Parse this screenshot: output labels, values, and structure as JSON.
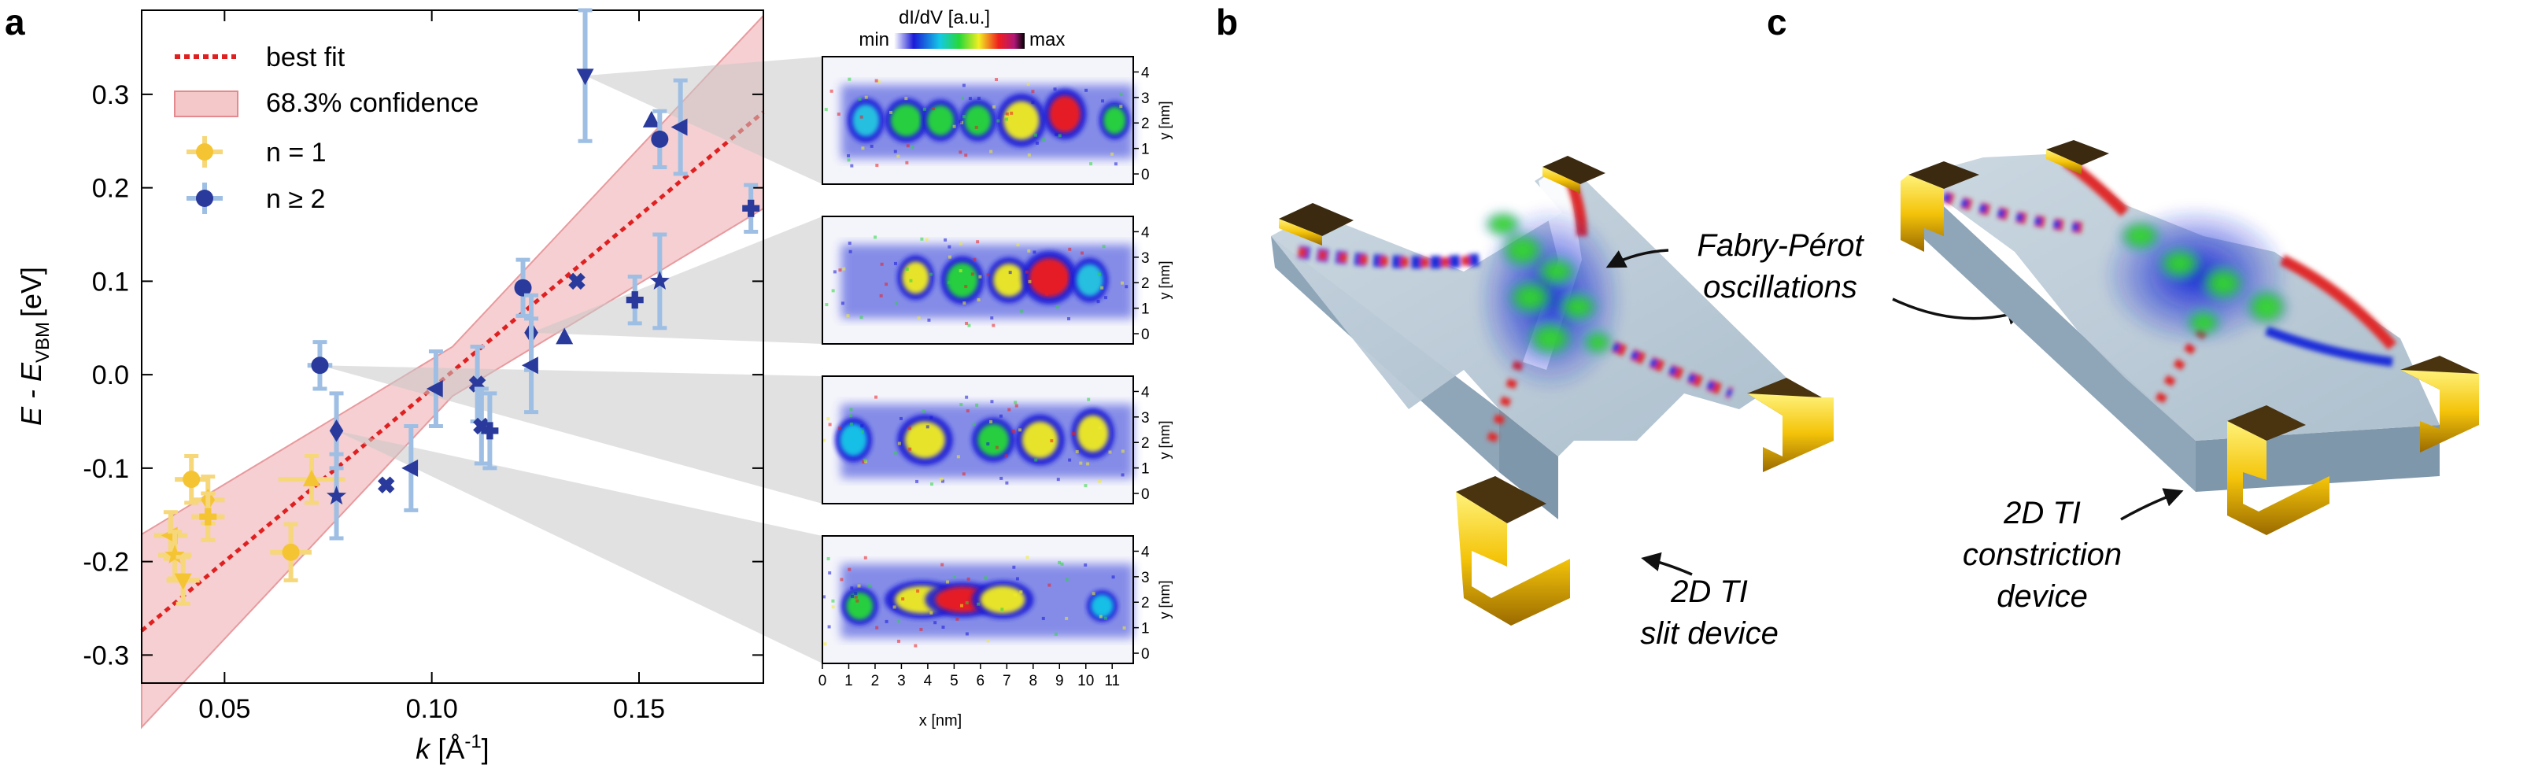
{
  "panels": {
    "a": "a",
    "b": "b",
    "c": "c"
  },
  "chart_data": {
    "type": "scatter",
    "xlabel_symbol": "k",
    "xlabel_unit": "[Å",
    "xlabel_unit_sup": "-1",
    "xlabel_unit_close": "]",
    "ylabel_prefix": "E - E",
    "ylabel_sub": "VBM",
    "ylabel_unit": "[eV]",
    "xlim": [
      0.03,
      0.18
    ],
    "ylim": [
      -0.33,
      0.39
    ],
    "xticks": [
      0.05,
      0.1,
      0.15
    ],
    "xtick_labels": [
      "0.05",
      "0.10",
      "0.15"
    ],
    "yticks": [
      -0.3,
      -0.2,
      -0.1,
      0.0,
      0.1,
      0.2,
      0.3
    ],
    "ytick_labels": [
      "-0.3",
      "-0.2",
      "-0.1",
      "0.0",
      "0.1",
      "0.2",
      "0.3"
    ],
    "fit": {
      "slope": 3.7,
      "intercept": -0.385,
      "band_width": 0.048
    },
    "legend": {
      "fit": "best fit",
      "confidence": "68.3% confidence",
      "n1": "n = 1",
      "n2": "n  ≥  2"
    },
    "colors": {
      "n1": "#F5C433",
      "n2": "#2A3A9C",
      "errbar_n2": "#9EBFE3",
      "fit": "#E02020",
      "band": "#F4C7C9"
    },
    "series": [
      {
        "name": "n = 1",
        "points": [
          {
            "x": 0.042,
            "y": -0.112,
            "xerr": 0.004,
            "yerr": 0.025,
            "marker": "circle"
          },
          {
            "x": 0.046,
            "y": -0.134,
            "xerr": 0.004,
            "yerr": 0.025,
            "marker": "diamond"
          },
          {
            "x": 0.046,
            "y": -0.152,
            "xerr": 0.004,
            "yerr": 0.025,
            "marker": "plus"
          },
          {
            "x": 0.037,
            "y": -0.172,
            "xerr": 0.004,
            "yerr": 0.025,
            "marker": "triangle-left"
          },
          {
            "x": 0.038,
            "y": -0.193,
            "xerr": 0.004,
            "yerr": 0.025,
            "marker": "star"
          },
          {
            "x": 0.04,
            "y": -0.22,
            "xerr": 0.004,
            "yerr": 0.025,
            "marker": "triangle-down"
          },
          {
            "x": 0.066,
            "y": -0.19,
            "xerr": 0.005,
            "yerr": 0.03,
            "marker": "circle"
          },
          {
            "x": 0.071,
            "y": -0.112,
            "xerr": 0.008,
            "yerr": 0.025,
            "marker": "triangle-up"
          }
        ]
      },
      {
        "name": "n  ≥  2",
        "points": [
          {
            "x": 0.073,
            "y": 0.01,
            "xerr": 0.003,
            "yerr": 0.025,
            "marker": "circle"
          },
          {
            "x": 0.077,
            "y": -0.06,
            "xerr": 0.0,
            "yerr": 0.04,
            "marker": "diamond"
          },
          {
            "x": 0.077,
            "y": -0.13,
            "xerr": 0.0,
            "yerr": 0.045,
            "marker": "star"
          },
          {
            "x": 0.089,
            "y": -0.118,
            "xerr": 0.0,
            "yerr": 0.0,
            "marker": "cross"
          },
          {
            "x": 0.095,
            "y": -0.1,
            "xerr": 0.0,
            "yerr": 0.045,
            "marker": "triangle-left"
          },
          {
            "x": 0.101,
            "y": -0.015,
            "xerr": 0.0,
            "yerr": 0.04,
            "marker": "triangle-left"
          },
          {
            "x": 0.111,
            "y": -0.01,
            "xerr": 0.0,
            "yerr": 0.04,
            "marker": "cross"
          },
          {
            "x": 0.112,
            "y": -0.055,
            "xerr": 0.0,
            "yerr": 0.04,
            "marker": "cross"
          },
          {
            "x": 0.114,
            "y": -0.06,
            "xerr": 0.0,
            "yerr": 0.04,
            "marker": "plus"
          },
          {
            "x": 0.122,
            "y": 0.093,
            "xerr": 0.0,
            "yerr": 0.03,
            "marker": "circle"
          },
          {
            "x": 0.124,
            "y": 0.045,
            "xerr": 0.0,
            "yerr": 0.04,
            "marker": "diamond"
          },
          {
            "x": 0.124,
            "y": 0.01,
            "xerr": 0.0,
            "yerr": 0.05,
            "marker": "triangle-left"
          },
          {
            "x": 0.132,
            "y": 0.04,
            "xerr": 0.0,
            "yerr": 0.0,
            "marker": "triangle-up"
          },
          {
            "x": 0.135,
            "y": 0.1,
            "xerr": 0.0,
            "yerr": 0.0,
            "marker": "cross"
          },
          {
            "x": 0.137,
            "y": 0.32,
            "xerr": 0.0,
            "yerr": 0.07,
            "marker": "triangle-down"
          },
          {
            "x": 0.149,
            "y": 0.08,
            "xerr": 0.0,
            "yerr": 0.025,
            "marker": "plus"
          },
          {
            "x": 0.153,
            "y": 0.272,
            "xerr": 0.0,
            "yerr": 0.0,
            "marker": "triangle-up"
          },
          {
            "x": 0.155,
            "y": 0.1,
            "xerr": 0.0,
            "yerr": 0.05,
            "marker": "star"
          },
          {
            "x": 0.155,
            "y": 0.252,
            "xerr": 0.0,
            "yerr": 0.03,
            "marker": "circle"
          },
          {
            "x": 0.16,
            "y": 0.265,
            "xerr": 0.0,
            "yerr": 0.05,
            "marker": "triangle-left"
          },
          {
            "x": 0.177,
            "y": 0.178,
            "xerr": 0.0,
            "yerr": 0.025,
            "marker": "plus"
          }
        ]
      }
    ]
  },
  "maps": {
    "colorbar_title": "dI/dV [a.u.]",
    "colorbar_min": "min",
    "colorbar_max": "max",
    "ylabel": "y [nm]",
    "xlabel": "x [nm]",
    "yticks": [
      "0",
      "1",
      "2",
      "3",
      "4"
    ],
    "xticks": [
      "0",
      "1",
      "2",
      "3",
      "4",
      "5",
      "6",
      "7",
      "8",
      "9",
      "10",
      "11"
    ],
    "links_k": [
      0.137,
      0.124,
      0.073,
      0.077
    ]
  },
  "panel_b": {
    "label_fp_line1": "Fabry-Pérot",
    "label_fp_line2": "oscillations",
    "label_dev_line1": "2D TI",
    "label_dev_line2": "slit device"
  },
  "panel_c": {
    "label_line1": "2D TI",
    "label_line2": "constriction",
    "label_line3": "device"
  }
}
